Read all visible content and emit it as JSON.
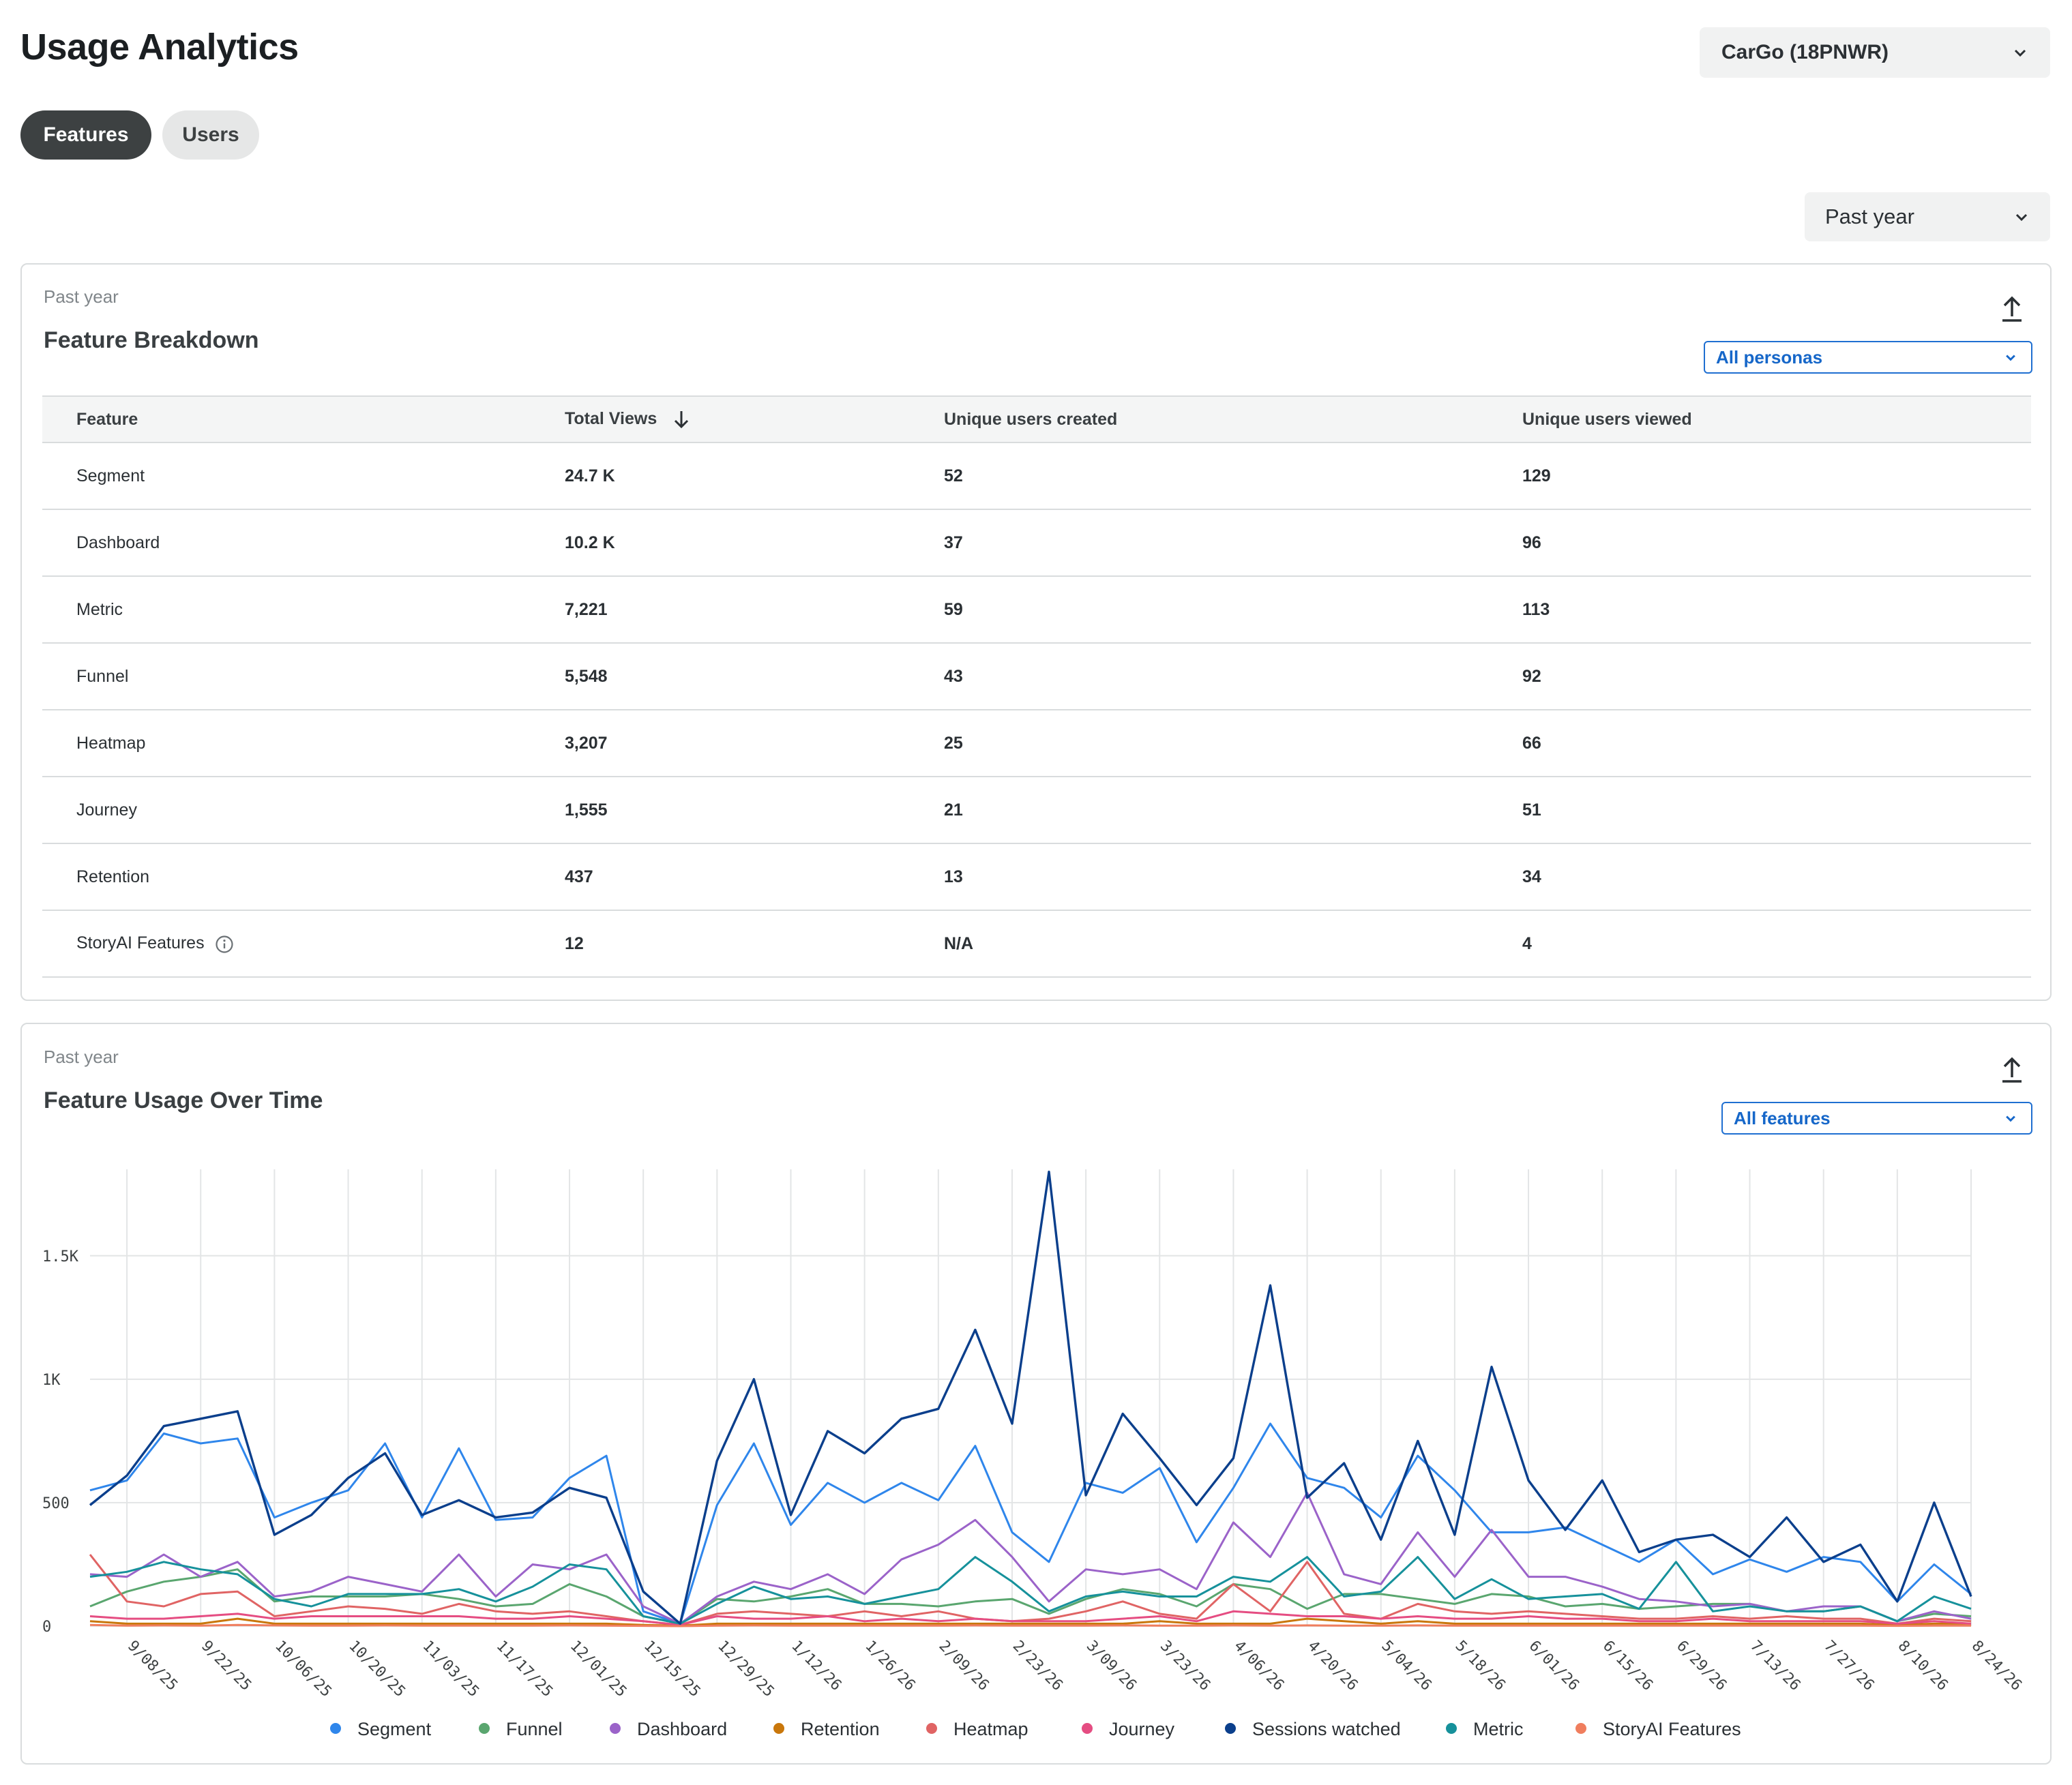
{
  "header": {
    "title": "Usage Analytics",
    "app_selector": "CarGo (18PNWR)",
    "tabs": [
      {
        "label": "Features",
        "active": true
      },
      {
        "label": "Users",
        "active": false
      }
    ],
    "range_selector": "Past year"
  },
  "breakdown": {
    "kicker": "Past year",
    "title": "Feature Breakdown",
    "persona_filter": "All personas",
    "columns": [
      "Feature",
      "Total Views",
      "Unique users created",
      "Unique users viewed"
    ],
    "rows": [
      {
        "feature": "Segment",
        "views": "24.7 K",
        "created": "52",
        "viewed": "129"
      },
      {
        "feature": "Dashboard",
        "views": "10.2 K",
        "created": "37",
        "viewed": "96"
      },
      {
        "feature": "Metric",
        "views": "7,221",
        "created": "59",
        "viewed": "113"
      },
      {
        "feature": "Funnel",
        "views": "5,548",
        "created": "43",
        "viewed": "92"
      },
      {
        "feature": "Heatmap",
        "views": "3,207",
        "created": "25",
        "viewed": "66"
      },
      {
        "feature": "Journey",
        "views": "1,555",
        "created": "21",
        "viewed": "51"
      },
      {
        "feature": "Retention",
        "views": "437",
        "created": "13",
        "viewed": "34"
      },
      {
        "feature": "StoryAI Features",
        "views": "12",
        "created": "N/A",
        "viewed": "4"
      }
    ]
  },
  "usage": {
    "kicker": "Past year",
    "title": "Feature Usage Over Time",
    "feature_filter": "All features"
  },
  "chart_data": {
    "type": "line",
    "grid": true,
    "legend_position": "bottom",
    "ylim": [
      0,
      1850
    ],
    "y_ticks": [
      0,
      500,
      1000,
      1500
    ],
    "y_tick_labels": [
      "0",
      "500",
      "1K",
      "1.5K"
    ],
    "x_tick_labels": [
      "9/08/25",
      "9/22/25",
      "10/06/25",
      "10/20/25",
      "11/03/25",
      "11/17/25",
      "12/01/25",
      "12/15/25",
      "12/29/25",
      "1/12/26",
      "1/26/26",
      "2/09/26",
      "2/23/26",
      "3/09/26",
      "3/23/26",
      "4/06/26",
      "4/20/26",
      "5/04/26",
      "5/18/26",
      "6/01/26",
      "6/15/26",
      "6/29/26",
      "7/13/26",
      "7/27/26",
      "8/10/26",
      "8/24/26"
    ],
    "x": [
      "9/01/25",
      "9/08/25",
      "9/15/25",
      "9/22/25",
      "9/29/25",
      "10/06/25",
      "10/13/25",
      "10/20/25",
      "10/27/25",
      "11/03/25",
      "11/10/25",
      "11/17/25",
      "11/24/25",
      "12/01/25",
      "12/08/25",
      "12/15/25",
      "12/22/25",
      "12/29/25",
      "1/05/26",
      "1/12/26",
      "1/19/26",
      "1/26/26",
      "2/02/26",
      "2/09/26",
      "2/16/26",
      "2/23/26",
      "3/02/26",
      "3/09/26",
      "3/16/26",
      "3/23/26",
      "3/30/26",
      "4/06/26",
      "4/13/26",
      "4/20/26",
      "4/27/26",
      "5/04/26",
      "5/11/26",
      "5/18/26",
      "5/25/26",
      "6/01/26",
      "6/08/26",
      "6/15/26",
      "6/22/26",
      "6/29/26",
      "7/06/26",
      "7/13/26",
      "7/20/26",
      "7/27/26",
      "8/03/26",
      "8/10/26",
      "8/17/26",
      "8/24/26"
    ],
    "series": [
      {
        "name": "Segment",
        "color": "#2f86eb",
        "values": [
          550,
          590,
          780,
          740,
          760,
          440,
          500,
          550,
          740,
          440,
          720,
          430,
          440,
          600,
          690,
          60,
          10,
          490,
          740,
          410,
          580,
          500,
          580,
          510,
          730,
          380,
          260,
          580,
          540,
          640,
          340,
          560,
          820,
          600,
          560,
          440,
          690,
          550,
          380,
          380,
          400,
          330,
          260,
          350,
          210,
          270,
          220,
          280,
          260,
          100,
          250,
          130
        ]
      },
      {
        "name": "Funnel",
        "color": "#5aa66f",
        "values": [
          80,
          140,
          180,
          200,
          230,
          100,
          120,
          120,
          120,
          130,
          110,
          80,
          90,
          170,
          120,
          40,
          10,
          110,
          100,
          120,
          150,
          90,
          90,
          80,
          100,
          110,
          50,
          110,
          150,
          130,
          80,
          170,
          150,
          70,
          130,
          130,
          110,
          90,
          130,
          120,
          80,
          90,
          70,
          80,
          90,
          90,
          60,
          60,
          80,
          20,
          50,
          40
        ]
      },
      {
        "name": "Dashboard",
        "color": "#9b63c9",
        "values": [
          210,
          200,
          290,
          200,
          260,
          120,
          140,
          200,
          170,
          140,
          290,
          120,
          250,
          230,
          290,
          80,
          10,
          120,
          180,
          150,
          210,
          130,
          270,
          330,
          430,
          280,
          100,
          230,
          210,
          230,
          150,
          420,
          280,
          540,
          210,
          170,
          380,
          200,
          390,
          200,
          200,
          160,
          110,
          100,
          80,
          90,
          60,
          80,
          80,
          20,
          60,
          30
        ]
      },
      {
        "name": "Retention",
        "color": "#c9770b",
        "values": [
          20,
          10,
          10,
          10,
          30,
          10,
          10,
          10,
          10,
          10,
          10,
          10,
          10,
          10,
          10,
          5,
          2,
          10,
          10,
          10,
          10,
          10,
          10,
          10,
          10,
          10,
          10,
          10,
          10,
          20,
          10,
          10,
          10,
          30,
          20,
          10,
          20,
          10,
          10,
          10,
          10,
          10,
          10,
          10,
          10,
          10,
          10,
          10,
          10,
          5,
          10,
          10
        ]
      },
      {
        "name": "Heatmap",
        "color": "#e06464",
        "values": [
          290,
          100,
          80,
          130,
          140,
          40,
          60,
          80,
          70,
          50,
          90,
          60,
          50,
          60,
          40,
          20,
          5,
          50,
          60,
          50,
          40,
          60,
          40,
          60,
          30,
          20,
          30,
          60,
          100,
          50,
          30,
          170,
          60,
          260,
          50,
          30,
          90,
          60,
          50,
          60,
          50,
          40,
          30,
          30,
          40,
          30,
          40,
          30,
          30,
          10,
          30,
          20
        ]
      },
      {
        "name": "Journey",
        "color": "#e54d82",
        "values": [
          40,
          30,
          30,
          40,
          50,
          30,
          40,
          40,
          40,
          40,
          40,
          30,
          30,
          40,
          30,
          20,
          5,
          40,
          30,
          30,
          40,
          20,
          30,
          20,
          30,
          20,
          20,
          20,
          30,
          40,
          20,
          60,
          50,
          40,
          40,
          30,
          40,
          30,
          30,
          40,
          30,
          30,
          20,
          20,
          30,
          20,
          20,
          20,
          20,
          10,
          20,
          10
        ]
      },
      {
        "name": "Sessions watched",
        "color": "#0b3f8c",
        "values": [
          490,
          610,
          810,
          840,
          870,
          370,
          450,
          600,
          700,
          450,
          510,
          440,
          460,
          560,
          520,
          140,
          10,
          670,
          1000,
          450,
          790,
          700,
          840,
          880,
          1200,
          820,
          1840,
          530,
          860,
          680,
          490,
          680,
          1380,
          520,
          660,
          350,
          750,
          370,
          1050,
          590,
          390,
          590,
          300,
          350,
          370,
          280,
          440,
          260,
          330,
          100,
          500,
          120
        ]
      },
      {
        "name": "Metric",
        "color": "#16919b",
        "values": [
          200,
          220,
          260,
          230,
          210,
          110,
          80,
          130,
          130,
          130,
          150,
          100,
          160,
          250,
          230,
          40,
          10,
          90,
          160,
          110,
          120,
          90,
          120,
          150,
          280,
          180,
          60,
          120,
          140,
          120,
          120,
          200,
          180,
          280,
          120,
          140,
          280,
          110,
          190,
          110,
          120,
          130,
          70,
          260,
          60,
          80,
          60,
          60,
          80,
          20,
          120,
          70
        ]
      },
      {
        "name": "StoryAI Features",
        "color": "#f07e5e",
        "values": [
          5,
          2,
          3,
          2,
          5,
          3,
          2,
          2,
          3,
          2,
          2,
          2,
          2,
          3,
          2,
          1,
          0,
          2,
          3,
          2,
          2,
          2,
          2,
          2,
          3,
          2,
          2,
          2,
          3,
          2,
          2,
          3,
          2,
          3,
          2,
          2,
          3,
          2,
          2,
          2,
          2,
          2,
          2,
          2,
          2,
          2,
          2,
          2,
          2,
          1,
          2,
          2
        ]
      }
    ]
  }
}
